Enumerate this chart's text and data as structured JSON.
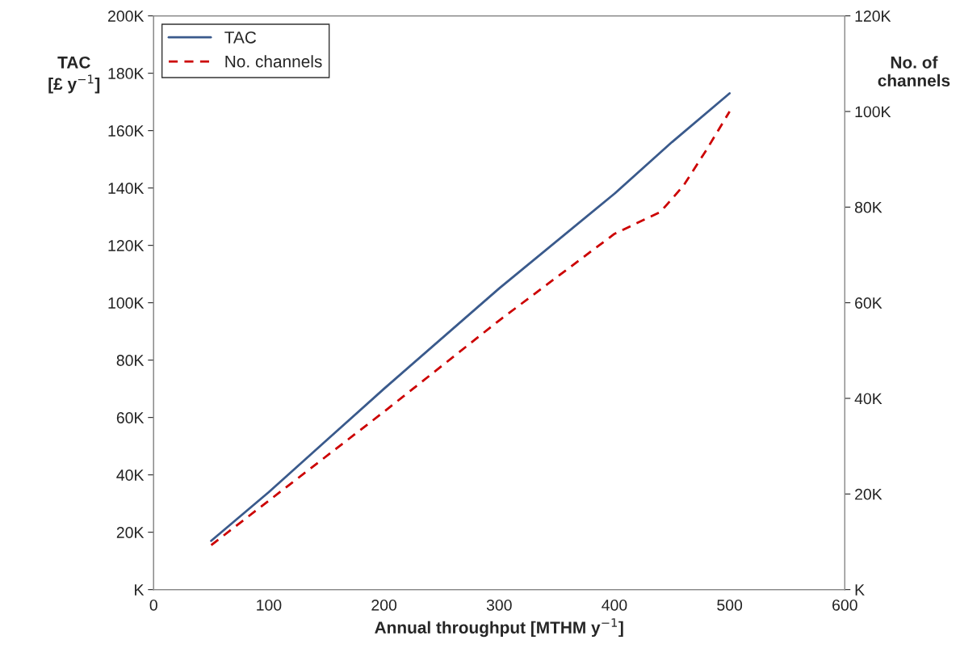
{
  "chart_data": {
    "type": "line",
    "xlabel": "Annual throughput [MTHM y$^{−1}$]",
    "ylabel": "TAC\n[£ y$^{−1}$]",
    "y2label": "No. of\nchannels",
    "xlim": [
      0,
      600
    ],
    "xticks": [
      0,
      100,
      200,
      300,
      400,
      500,
      600
    ],
    "ylim": [
      0,
      200000
    ],
    "yticks": [
      {
        "value": 0,
        "label": "K"
      },
      {
        "value": 20000,
        "label": "20K"
      },
      {
        "value": 40000,
        "label": "40K"
      },
      {
        "value": 60000,
        "label": "60K"
      },
      {
        "value": 80000,
        "label": "80K"
      },
      {
        "value": 100000,
        "label": "100K"
      },
      {
        "value": 120000,
        "label": "120K"
      },
      {
        "value": 140000,
        "label": "140K"
      },
      {
        "value": 160000,
        "label": "160K"
      },
      {
        "value": 180000,
        "label": "180K"
      },
      {
        "value": 200000,
        "label": "200K"
      }
    ],
    "y2lim": [
      0,
      120000
    ],
    "y2ticks": [
      {
        "value": 0,
        "label": "K"
      },
      {
        "value": 20000,
        "label": "20K"
      },
      {
        "value": 40000,
        "label": "40K"
      },
      {
        "value": 60000,
        "label": "60K"
      },
      {
        "value": 80000,
        "label": "80K"
      },
      {
        "value": 100000,
        "label": "100K"
      },
      {
        "value": 120000,
        "label": "120K"
      }
    ],
    "grid": false,
    "legend": "top left",
    "series": [
      {
        "name": "TAC",
        "color": "#3a5a8c",
        "line_style": "solid",
        "x": [
          50,
          100,
          150,
          200,
          300,
          400,
          450,
          500
        ],
        "values": [
          17000,
          34000,
          52000,
          70000,
          105000,
          138000,
          156000,
          173000
        ]
      },
      {
        "name": "No. channels",
        "color": "#cc0000",
        "line_style": "dashed",
        "axis": "y2",
        "x": [
          50,
          100,
          200,
          300,
          400,
          440,
          460,
          480,
          500
        ],
        "values": [
          9300,
          18600,
          37200,
          56300,
          74400,
          79000,
          84500,
          92000,
          100000
        ]
      }
    ]
  }
}
